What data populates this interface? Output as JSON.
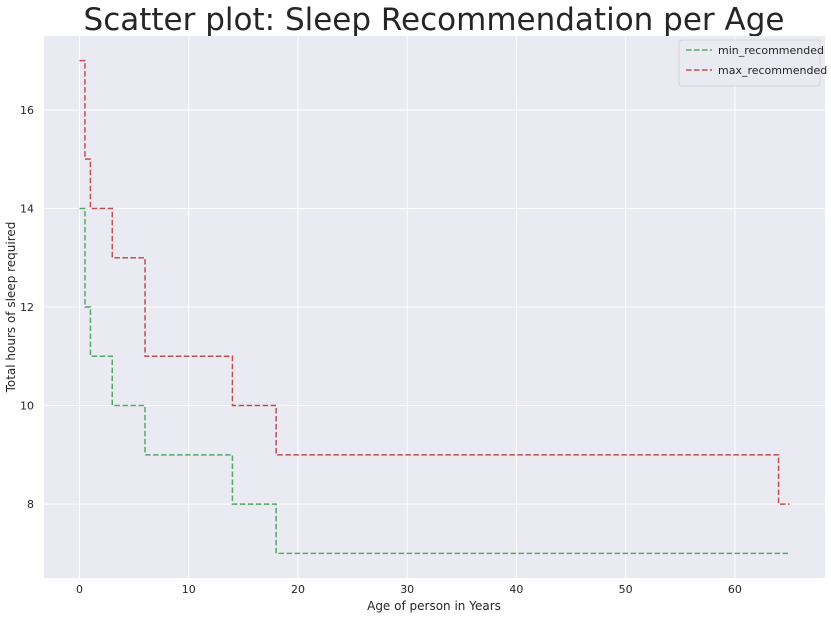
{
  "chart_data": {
    "type": "line",
    "title": "Scatter plot: Sleep Recommendation per Age",
    "xlabel": "Age of person in Years",
    "ylabel": "Total hours of sleep required",
    "xlim": [
      -3.25,
      68.25
    ],
    "ylim": [
      6.5,
      17.5
    ],
    "xticks": [
      0,
      10,
      20,
      30,
      40,
      50,
      60
    ],
    "yticks": [
      8,
      10,
      12,
      14,
      16
    ],
    "grid": true,
    "legend_position": "top-right",
    "background": "#eaeaf2",
    "series": [
      {
        "name": "min_recommended",
        "color": "#55a868",
        "dash": "dashed",
        "x": [
          0,
          0.25,
          0.25,
          0.5,
          0.5,
          1,
          1,
          2,
          2,
          3,
          3,
          5,
          5,
          6,
          6,
          13,
          13,
          14,
          14,
          17,
          17,
          18,
          18,
          64,
          64,
          65
        ],
        "y": [
          14,
          14,
          14,
          14,
          12,
          12,
          11,
          11,
          11,
          11,
          10,
          10,
          10,
          10,
          9,
          9,
          9,
          9,
          8,
          8,
          8,
          8,
          7,
          7,
          7,
          7
        ]
      },
      {
        "name": "max_recommended",
        "color": "#c44e52",
        "dash": "dashed",
        "x": [
          0,
          0.25,
          0.25,
          0.5,
          0.5,
          1,
          1,
          2,
          2,
          3,
          3,
          5,
          5,
          6,
          6,
          13,
          13,
          14,
          14,
          17,
          17,
          18,
          18,
          64,
          64,
          65
        ],
        "y": [
          17,
          17,
          17,
          17,
          15,
          15,
          14,
          14,
          14,
          14,
          13,
          13,
          13,
          13,
          11,
          11,
          11,
          11,
          10,
          10,
          10,
          10,
          9,
          9,
          8,
          8
        ]
      }
    ]
  }
}
